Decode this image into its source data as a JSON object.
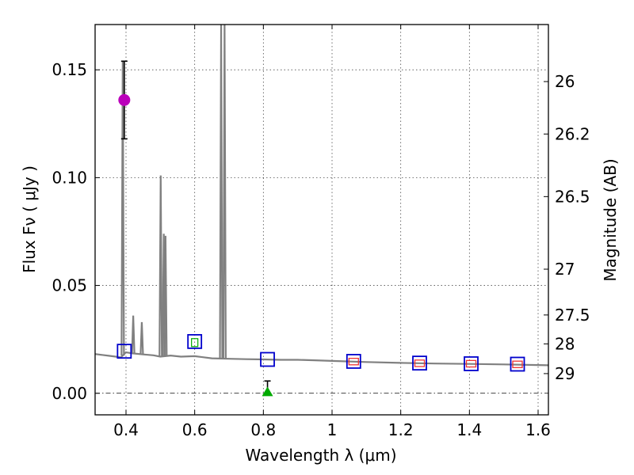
{
  "chart_data": {
    "type": "scatter",
    "xlabel": "Wavelength  λ (μm)",
    "ylabel": "Flux  Fν  ( μJy )",
    "y2label": "Magnitude (AB)",
    "xlim": [
      0.31,
      1.63
    ],
    "ylim": [
      -0.01,
      0.171
    ],
    "x_ticks": [
      0.4,
      0.6,
      0.8,
      1.0,
      1.2,
      1.4,
      1.6
    ],
    "x_tick_labels": [
      "0.4",
      "0.6",
      "0.8",
      "1",
      "1.2",
      "1.4",
      "1.6"
    ],
    "y_ticks": [
      0.0,
      0.05,
      0.1,
      0.15
    ],
    "y_tick_labels": [
      "0.00",
      "0.05",
      "0.10",
      "0.15"
    ],
    "mag_ticks": [
      26,
      26.2,
      26.5,
      27,
      27.5,
      28,
      29
    ],
    "mag_tick_labels": [
      "26",
      "26.2",
      "26.5",
      "27",
      "27.5",
      "28",
      "29"
    ],
    "grid": true,
    "colors": {
      "model": "#808080",
      "model_points": "#0000cc",
      "observed_box": "#ee3333",
      "detection": "#bb00bb",
      "upper_limit": "#00aa00",
      "errorbar": "#000000"
    },
    "model_sed": {
      "continuum": [
        [
          0.31,
          0.0182
        ],
        [
          0.33,
          0.0178
        ],
        [
          0.35,
          0.0174
        ],
        [
          0.37,
          0.017
        ],
        [
          0.385,
          0.0166
        ],
        [
          0.4,
          0.019
        ],
        [
          0.42,
          0.0185
        ],
        [
          0.45,
          0.018
        ],
        [
          0.48,
          0.0176
        ],
        [
          0.5,
          0.017
        ],
        [
          0.53,
          0.0175
        ],
        [
          0.56,
          0.017
        ],
        [
          0.6,
          0.0172
        ],
        [
          0.65,
          0.0162
        ],
        [
          0.7,
          0.016
        ],
        [
          0.75,
          0.0158
        ],
        [
          0.8,
          0.0157
        ],
        [
          0.85,
          0.0155
        ],
        [
          0.9,
          0.0155
        ],
        [
          0.95,
          0.0153
        ],
        [
          1.0,
          0.015
        ],
        [
          1.1,
          0.0145
        ],
        [
          1.2,
          0.0141
        ],
        [
          1.3,
          0.0138
        ],
        [
          1.4,
          0.0136
        ],
        [
          1.5,
          0.0134
        ],
        [
          1.6,
          0.0131
        ],
        [
          1.63,
          0.013
        ]
      ],
      "emission_lines": [
        {
          "wavelength": 0.3905,
          "peak": 0.154
        },
        {
          "wavelength": 0.421,
          "peak": 0.036
        },
        {
          "wavelength": 0.446,
          "peak": 0.033
        },
        {
          "wavelength": 0.501,
          "peak": 0.101
        },
        {
          "wavelength": 0.51,
          "peak": 0.074
        },
        {
          "wavelength": 0.515,
          "peak": 0.073
        },
        {
          "wavelength": 0.677,
          "peak": 0.19
        },
        {
          "wavelength": 0.687,
          "peak": 0.19
        }
      ]
    },
    "model_photometry": [
      {
        "x": 0.395,
        "y": 0.0195
      },
      {
        "x": 0.6,
        "y": 0.024
      },
      {
        "x": 0.812,
        "y": 0.0157
      },
      {
        "x": 1.063,
        "y": 0.0148
      },
      {
        "x": 1.255,
        "y": 0.014
      },
      {
        "x": 1.405,
        "y": 0.0137
      },
      {
        "x": 1.54,
        "y": 0.0135
      }
    ],
    "observed_photometry": [
      {
        "x": 1.063,
        "y": 0.0147,
        "yerr": 0.003
      },
      {
        "x": 1.255,
        "y": 0.0139,
        "yerr": 0.003
      },
      {
        "x": 1.405,
        "y": 0.0137,
        "yerr": 0.003
      },
      {
        "x": 1.54,
        "y": 0.0134,
        "yerr": 0.003
      }
    ],
    "detection": {
      "x": 0.395,
      "y": 0.136,
      "ylow": 0.118,
      "yhigh": 0.154
    },
    "upper_limit": {
      "x": 0.812,
      "y": 0.0005,
      "yhigh": 0.0057
    },
    "filter_curve": {
      "x": 0.6,
      "y": 0.0235
    }
  }
}
